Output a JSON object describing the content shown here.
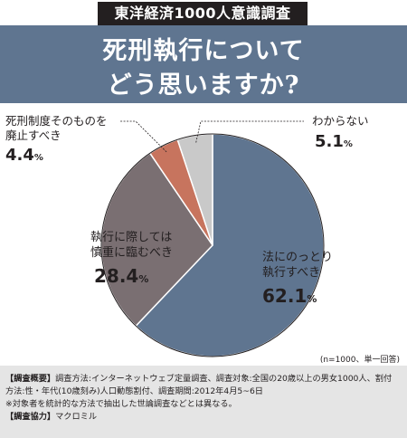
{
  "header": {
    "badge": "東洋経済1000人意識調査",
    "title_line1": "死刑執行について",
    "title_line2": "どう思いますか?"
  },
  "chart_data": {
    "type": "pie",
    "title": "死刑執行についてどう思いますか?",
    "sample_note": "(n=1000、単一回答)",
    "slices": [
      {
        "label": "法にのっとり執行すべき",
        "label_lines": [
          "法にのっとり",
          "執行すべき"
        ],
        "value": 62.1,
        "value_text": "62.1",
        "color": "#5f7590"
      },
      {
        "label": "執行に際しては慎重に臨むべき",
        "label_lines": [
          "執行に際しては",
          "慎重に臨むべき"
        ],
        "value": 28.4,
        "value_text": "28.4",
        "color": "#7a6f72"
      },
      {
        "label": "死刑制度そのものを廃止すべき",
        "label_lines": [
          "死刑制度そのものを",
          "廃止すべき"
        ],
        "value": 4.4,
        "value_text": "4.4",
        "color": "#c7745e"
      },
      {
        "label": "わからない",
        "label_lines": [
          "わからない"
        ],
        "value": 5.1,
        "value_text": "5.1",
        "color": "#c9c9c9"
      }
    ],
    "unit": "%"
  },
  "footnote": {
    "line1_bold": "【調査概要】",
    "line1": "調査方法:インターネットウェブ定量調査、調査対象:全国の20歳以上の男女1000人、割付",
    "line2": "方法:性・年代(10歳刻み)人口動態割付、調査期間:2012年4月5~6日",
    "line3": "※対象者を統計的な方法で抽出した世論調査などとは異なる。",
    "line4_bold": "【調査協力】",
    "line4": "マクロミル"
  }
}
